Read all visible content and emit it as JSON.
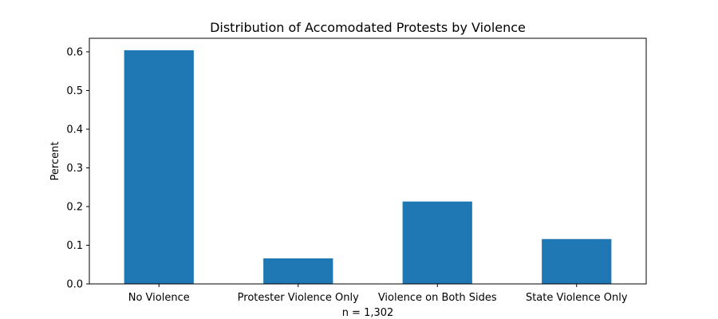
{
  "chart_data": {
    "type": "bar",
    "title": "Distribution of Accomodated Protests by Violence",
    "xlabel": "n = 1,302",
    "ylabel": "Percent",
    "categories": [
      "No Violence",
      "Protester Violence Only",
      "Violence on Both Sides",
      "State Violence Only"
    ],
    "values": [
      0.604,
      0.066,
      0.213,
      0.116
    ],
    "ylim": [
      0.0,
      0.635
    ],
    "yticks": [
      "0.0",
      "0.1",
      "0.2",
      "0.3",
      "0.4",
      "0.5",
      "0.6"
    ],
    "bar_color": "#1f77b4",
    "grid": false
  }
}
